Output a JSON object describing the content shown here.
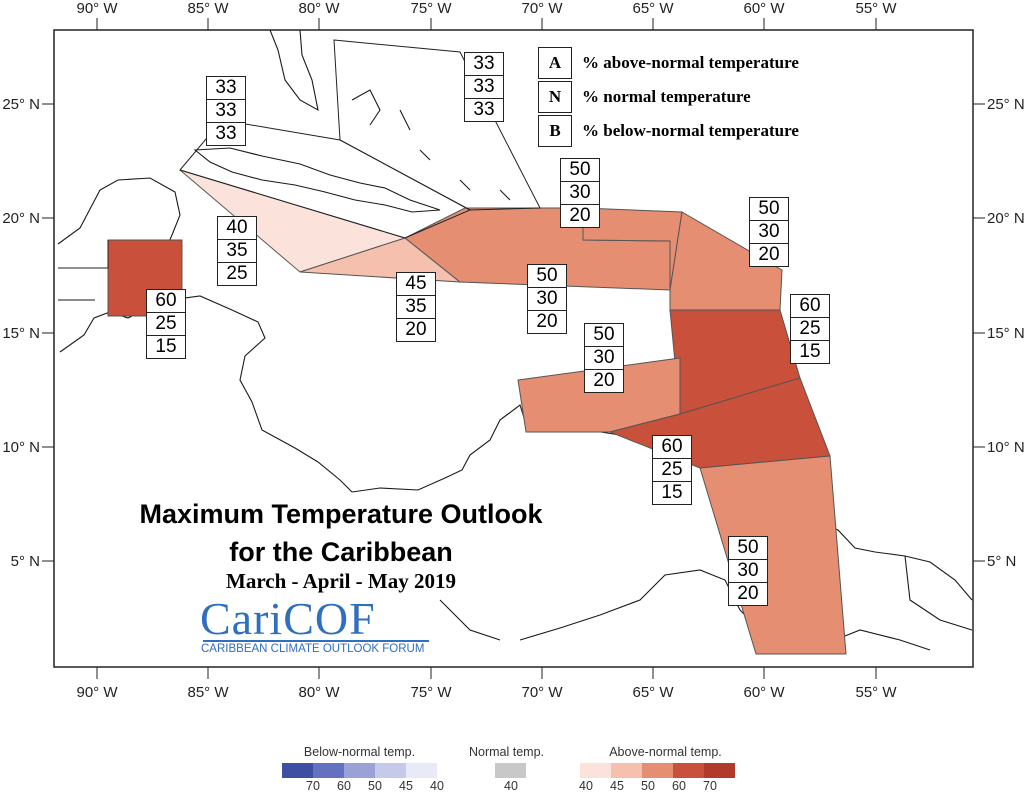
{
  "map": {
    "lon_labels": [
      "90° W",
      "85° W",
      "80° W",
      "75° W",
      "70° W",
      "65° W",
      "60° W",
      "55° W"
    ],
    "lat_labels": [
      "25° N",
      "20° N",
      "15° N",
      "10° N",
      "5° N"
    ]
  },
  "legend_key": [
    {
      "letter": "A",
      "text": "% above-normal temperature"
    },
    {
      "letter": "N",
      "text": "% normal temperature"
    },
    {
      "letter": "B",
      "text": "% below-normal temperature"
    }
  ],
  "regions": [
    {
      "name": "belize",
      "a": "60",
      "n": "25",
      "b": "15",
      "color": "#c9503b"
    },
    {
      "name": "bahamas",
      "a": "33",
      "n": "33",
      "b": "33",
      "color": "#ffffff"
    },
    {
      "name": "cuba-northwest",
      "a": "33",
      "n": "33",
      "b": "33",
      "color": "#ffffff"
    },
    {
      "name": "cayman",
      "a": "40",
      "n": "35",
      "b": "25",
      "color": "#fbe3db"
    },
    {
      "name": "jamaica",
      "a": "45",
      "n": "35",
      "b": "20",
      "color": "#f5c0ae"
    },
    {
      "name": "hispaniola",
      "a": "50",
      "n": "30",
      "b": "20",
      "color": "#e58e72"
    },
    {
      "name": "puerto-rico",
      "a": "50",
      "n": "30",
      "b": "20",
      "color": "#e58e72"
    },
    {
      "name": "leeward",
      "a": "50",
      "n": "30",
      "b": "20",
      "color": "#e58e72"
    },
    {
      "name": "windward",
      "a": "60",
      "n": "25",
      "b": "15",
      "color": "#c9503b"
    },
    {
      "name": "abc-islands",
      "a": "50",
      "n": "30",
      "b": "20",
      "color": "#e58e72"
    },
    {
      "name": "trinidad",
      "a": "60",
      "n": "25",
      "b": "15",
      "color": "#c9503b"
    },
    {
      "name": "guianas",
      "a": "50",
      "n": "30",
      "b": "20",
      "color": "#e58e72"
    }
  ],
  "title": {
    "line1": "Maximum Temperature Outlook",
    "line2": "for the Caribbean",
    "line3": "March - April - May 2019"
  },
  "logo": {
    "name": "CariCOF",
    "tagline": "CARIBBEAN CLIMATE OUTLOOK FORUM"
  },
  "colorbar": {
    "below": {
      "title": "Below-normal temp.",
      "labels": [
        "70",
        "60",
        "50",
        "45",
        "40"
      ],
      "colors": [
        "#3c4fa3",
        "#6471c0",
        "#9aa1d6",
        "#c6caea",
        "#e8eaf7"
      ]
    },
    "normal": {
      "title": "Normal temp.",
      "labels": [
        "40"
      ],
      "colors": [
        "#c8c8c8"
      ]
    },
    "above": {
      "title": "Above-normal temp.",
      "labels": [
        "40",
        "45",
        "50",
        "60",
        "70"
      ],
      "colors": [
        "#fbe3db",
        "#f5c0ae",
        "#e58e72",
        "#c9503b",
        "#b13a2a"
      ]
    }
  }
}
